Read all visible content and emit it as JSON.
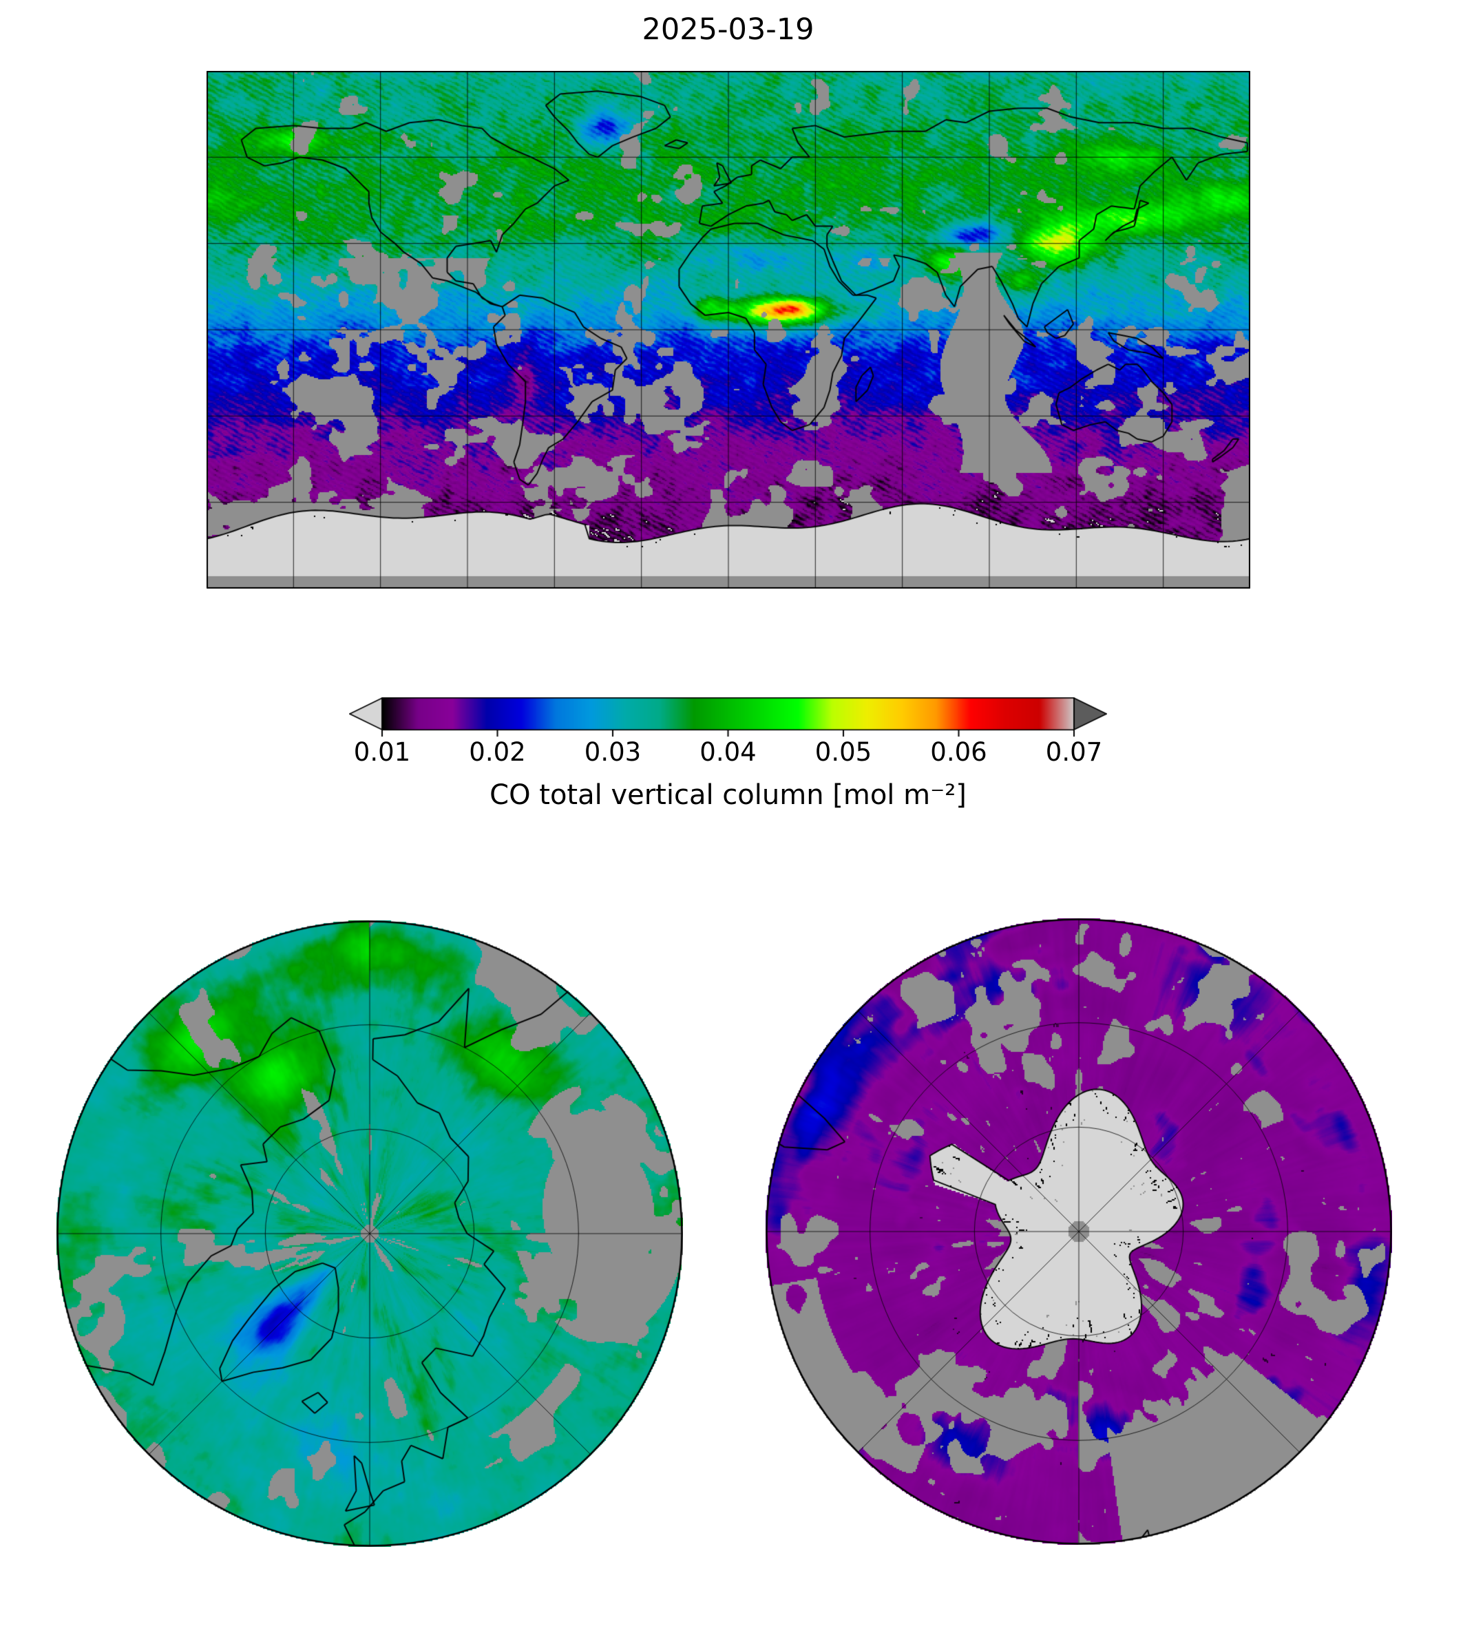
{
  "figure": {
    "title": "2025-03-19",
    "background": "#ffffff"
  },
  "colorbar": {
    "label": "CO total vertical column [mol m⁻²]",
    "ticks": [
      "0.01",
      "0.02",
      "0.03",
      "0.04",
      "0.05",
      "0.06",
      "0.07"
    ],
    "vmin": 0.01,
    "vmax": 0.07,
    "extend": "both",
    "under_color": "#d6d6d6",
    "over_color": "#5c5c5c",
    "missing_color": "#8f8f8f",
    "colormap_name": "nipy_spectral",
    "colormap_stops": [
      [
        0.0,
        "#000000"
      ],
      [
        0.05,
        "#770088"
      ],
      [
        0.1,
        "#880099"
      ],
      [
        0.15,
        "#0000aa"
      ],
      [
        0.2,
        "#0000dd"
      ],
      [
        0.25,
        "#0077dd"
      ],
      [
        0.3,
        "#0099dd"
      ],
      [
        0.35,
        "#00aaaa"
      ],
      [
        0.4,
        "#00aa88"
      ],
      [
        0.45,
        "#009900"
      ],
      [
        0.5,
        "#00bb00"
      ],
      [
        0.55,
        "#00dd00"
      ],
      [
        0.6,
        "#00ff00"
      ],
      [
        0.65,
        "#bbff00"
      ],
      [
        0.7,
        "#eeee00"
      ],
      [
        0.75,
        "#ffcc00"
      ],
      [
        0.8,
        "#ff9900"
      ],
      [
        0.85,
        "#ff0000"
      ],
      [
        0.9,
        "#dd0000"
      ],
      [
        0.95,
        "#cc0000"
      ],
      [
        1.0,
        "#cccccc"
      ]
    ]
  },
  "chart_data": {
    "type": "heatmap",
    "title": "2025-03-19",
    "variable": "CO total vertical column",
    "units": "mol m⁻²",
    "colorbar": {
      "min": 0.01,
      "max": 0.07,
      "ticks": [
        0.01,
        0.02,
        0.03,
        0.04,
        0.05,
        0.06,
        0.07
      ],
      "extend": "both",
      "colormap": "nipy_spectral",
      "under_color_meaning": "values below 0.01 (light gray, e.g. Antarctic plateau)",
      "over_color_meaning": "values above 0.07 (dark gray arrow)",
      "gray_background_meaning": "missing / no retrieval"
    },
    "panels": [
      {
        "id": "global-map",
        "projection": "equirectangular",
        "lon_range": [
          -180,
          180
        ],
        "lat_range": [
          -90,
          90
        ],
        "graticule_spacing_deg": 30,
        "regional_values_mol_m2": {
          "northern_mid_high_latitudes": 0.035,
          "greenland_low_patch": 0.022,
          "central_africa_burning_plume_peak": 0.065,
          "west_africa_coast_plume": 0.05,
          "east_asia_outflow": 0.055,
          "india_plume": 0.045,
          "alaska_streak": 0.045,
          "northern_tropical_oceans": 0.028,
          "southern_tropical_oceans": 0.022,
          "southern_mid_latitudes": 0.016,
          "southern_high_latitudes": 0.013,
          "antarctica": "<0.01 (below scale, light gray)"
        },
        "missing_data": "large gray swath over Bay of Bengal / central Indian Ocean, scattered gray patches over oceans and southern mid-latitudes, gray strip at far south edge"
      },
      {
        "id": "north-polar-map",
        "projection": "north polar azimuthal",
        "rim_latitude": 45,
        "graticule": "latitude circles at 60N and 75N, meridians every 45 deg, 0 deg at bottom",
        "regional_values_mol_m2": {
          "arctic_background": 0.034,
          "teal_patches": 0.03,
          "greenland_low_blob": 0.022,
          "alaska_and_east_asia_yellow_streaks": 0.048
        },
        "missing_data": "gray sector over central Siberia side, gray patches near rim, tiny gray dot at the pole"
      },
      {
        "id": "south-polar-map",
        "projection": "south polar azimuthal",
        "rim_latitude": -45,
        "graticule": "latitude circles at 60S and 75S, meridians every 45 deg, 0 deg at top",
        "regional_values_mol_m2": {
          "southern_ocean_background": 0.0145,
          "blue_patches_near_rim": 0.021,
          "dark_speckle": 0.011,
          "antarctic_continent": "<0.01 (below scale, light gray with black coastline speckle)"
        },
        "missing_data": "gray wedge lower-right, scattered gray speckle, small gray disk at the pole (orbit gap)"
      }
    ]
  }
}
